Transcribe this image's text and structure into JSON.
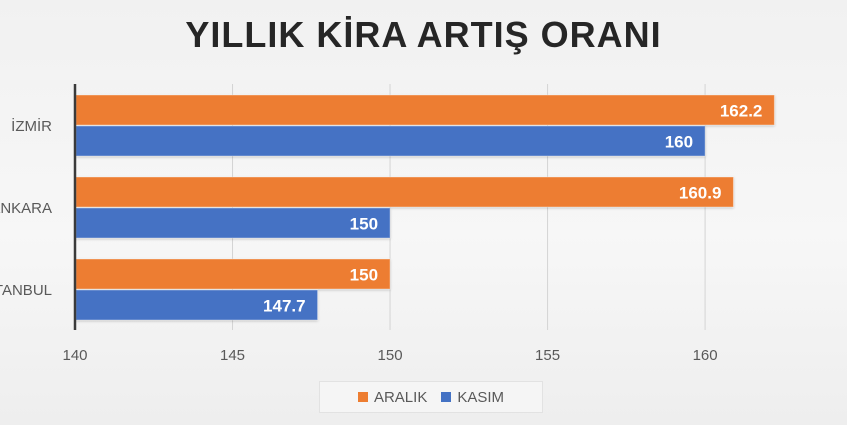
{
  "chart_data": {
    "type": "bar",
    "orientation": "horizontal",
    "title": "YILLIK KİRA ARTIŞ ORANI",
    "categories": [
      "İZMİR",
      "ANKARA",
      "İSTANBUL"
    ],
    "series": [
      {
        "name": "ARALIK",
        "color": "#ED7D31",
        "values": [
          162.2,
          160.9,
          150
        ]
      },
      {
        "name": "KASIM",
        "color": "#4472C4",
        "values": [
          160,
          150,
          147.7
        ]
      }
    ],
    "xlim": [
      140,
      162.6
    ],
    "xticks": [
      140,
      145,
      150,
      155,
      160
    ],
    "grid": true,
    "data_labels": true,
    "legend_position": "bottom"
  }
}
